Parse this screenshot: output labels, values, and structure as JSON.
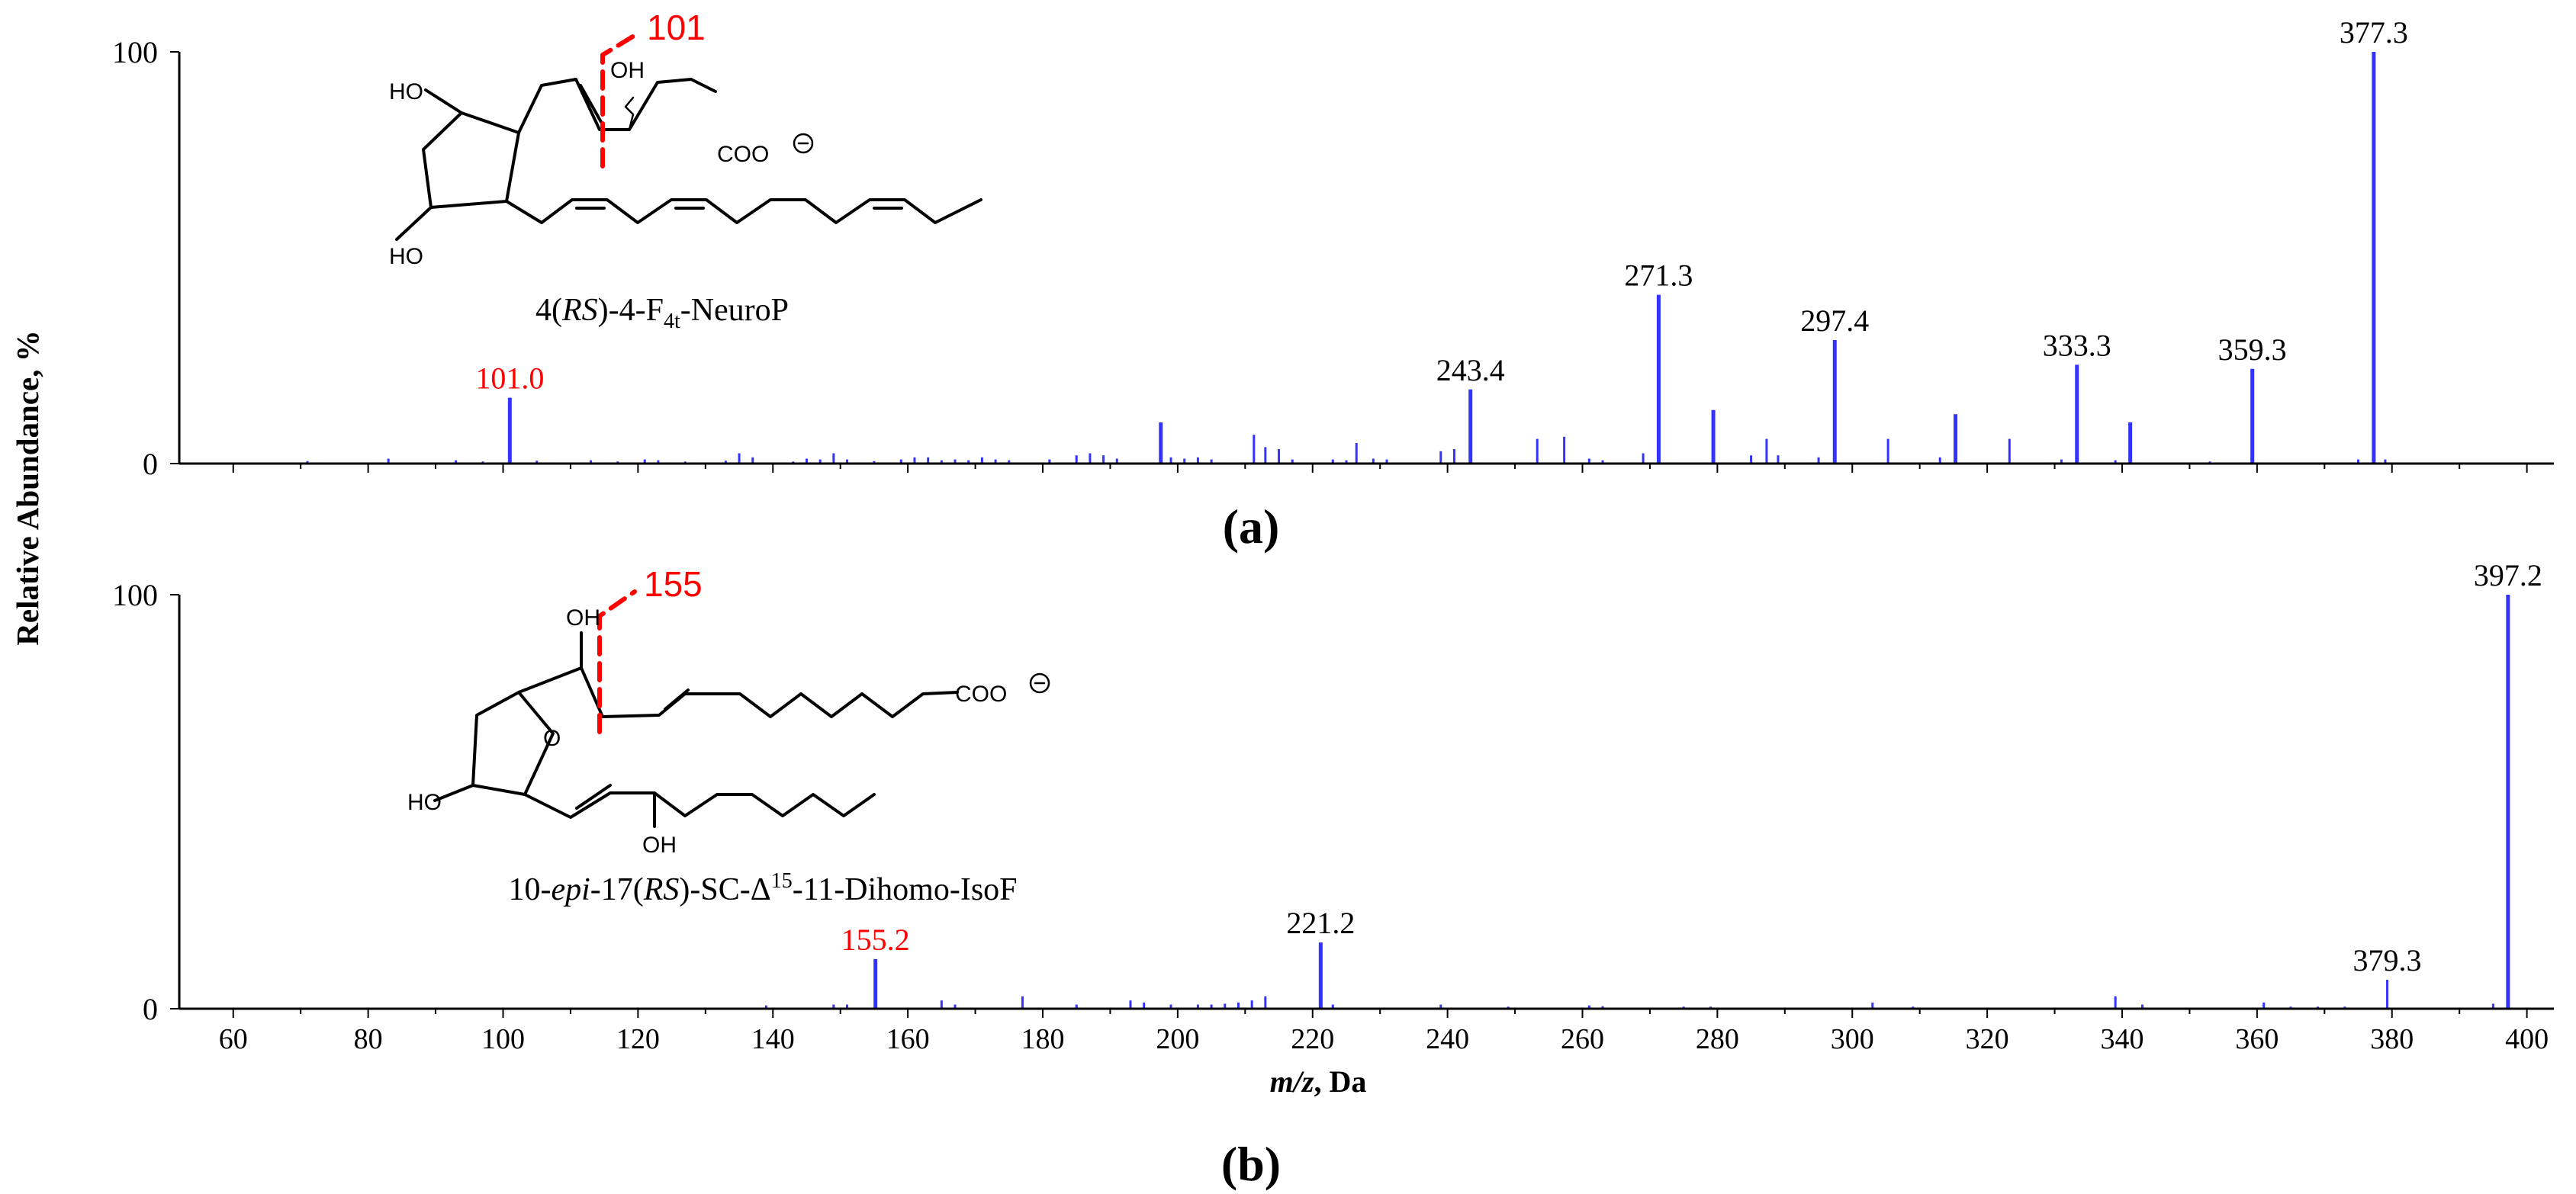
{
  "figure": {
    "y_axis_label": "Relative Abundance, %",
    "x_axis_label_italic": "m/z",
    "x_axis_label_suffix": ", Da",
    "panel_labels": [
      "(a)",
      "(b)"
    ]
  },
  "colors": {
    "spectrum": "#3333ff",
    "fragment": "#ff0000",
    "axis": "#000000"
  },
  "structures": [
    {
      "compound_parts": [
        "4(",
        "RS",
        ")-4-F",
        "4t",
        "-NeuroP"
      ],
      "fragment_label": "101",
      "atom_labels": [
        "HO",
        "HO",
        "OH",
        "COO"
      ]
    },
    {
      "compound_parts": [
        "10-",
        "epi",
        "-17(",
        "RS",
        ")-SC-Δ",
        "15",
        "-11-Dihomo-IsoF"
      ],
      "fragment_label": "155",
      "atom_labels": [
        "OH",
        "O",
        "HO",
        "OH",
        "COO"
      ]
    }
  ],
  "chart_data": [
    {
      "type": "bar",
      "panel": "(a)",
      "xlim": [
        52,
        404
      ],
      "ylim": [
        0,
        100
      ],
      "yticks": [
        0,
        100
      ],
      "xlabel": "",
      "ylabel": "Relative Abundance, %",
      "labeled_peaks": [
        {
          "x": 101.0,
          "label": "101.0",
          "color": "#ff0000"
        },
        {
          "x": 243.4,
          "label": "243.4"
        },
        {
          "x": 271.3,
          "label": "271.3"
        },
        {
          "x": 297.4,
          "label": "297.4"
        },
        {
          "x": 333.3,
          "label": "333.3"
        },
        {
          "x": 359.3,
          "label": "359.3"
        },
        {
          "x": 377.3,
          "label": "377.3"
        }
      ],
      "peaks": [
        [
          101.0,
          16
        ],
        [
          197.5,
          10
        ],
        [
          211.3,
          7
        ],
        [
          226.5,
          5
        ],
        [
          243.4,
          18
        ],
        [
          253.3,
          6
        ],
        [
          257.3,
          6.5
        ],
        [
          271.3,
          41
        ],
        [
          279.4,
          13
        ],
        [
          287.3,
          6
        ],
        [
          297.4,
          30
        ],
        [
          305.3,
          6
        ],
        [
          315.3,
          12
        ],
        [
          323.3,
          6
        ],
        [
          333.3,
          24
        ],
        [
          341.2,
          10
        ],
        [
          359.3,
          23
        ],
        [
          377.3,
          100
        ],
        [
          71,
          0.6
        ],
        [
          83,
          1.2
        ],
        [
          93,
          0.8
        ],
        [
          97,
          0.5
        ],
        [
          105,
          0.7
        ],
        [
          113,
          0.8
        ],
        [
          117,
          0.5
        ],
        [
          121,
          1.0
        ],
        [
          123,
          0.8
        ],
        [
          127,
          0.5
        ],
        [
          133,
          0.7
        ],
        [
          135,
          2.5
        ],
        [
          137,
          1.5
        ],
        [
          143,
          0.5
        ],
        [
          145,
          1.2
        ],
        [
          147,
          1.0
        ],
        [
          149,
          2.5
        ],
        [
          151,
          1.0
        ],
        [
          155,
          0.6
        ],
        [
          159,
          1.0
        ],
        [
          161,
          1.5
        ],
        [
          163,
          1.5
        ],
        [
          165,
          0.8
        ],
        [
          167,
          1.0
        ],
        [
          169,
          0.8
        ],
        [
          171,
          1.5
        ],
        [
          173,
          1.0
        ],
        [
          175,
          0.8
        ],
        [
          181,
          1.0
        ],
        [
          185,
          2.0
        ],
        [
          187,
          2.5
        ],
        [
          189,
          2.0
        ],
        [
          191,
          1.2
        ],
        [
          199,
          1.5
        ],
        [
          201,
          1.2
        ],
        [
          203,
          1.5
        ],
        [
          205,
          1.0
        ],
        [
          213,
          4.0
        ],
        [
          215,
          3.5
        ],
        [
          217,
          1.0
        ],
        [
          223,
          1.0
        ],
        [
          225,
          0.8
        ],
        [
          229,
          1.2
        ],
        [
          231,
          1.0
        ],
        [
          239,
          3.0
        ],
        [
          241,
          3.5
        ],
        [
          261,
          1.2
        ],
        [
          263,
          0.8
        ],
        [
          269,
          2.5
        ],
        [
          285,
          2.0
        ],
        [
          289,
          2.0
        ],
        [
          295,
          1.5
        ],
        [
          313,
          1.5
        ],
        [
          331,
          1.0
        ],
        [
          339,
          0.8
        ],
        [
          353,
          0.5
        ],
        [
          375,
          1.0
        ],
        [
          379,
          1.0
        ]
      ]
    },
    {
      "type": "bar",
      "panel": "(b)",
      "xlim": [
        52,
        404
      ],
      "ylim": [
        0,
        100
      ],
      "yticks": [
        0,
        100
      ],
      "xticks": [
        60,
        80,
        100,
        120,
        140,
        160,
        180,
        200,
        220,
        240,
        260,
        280,
        300,
        320,
        340,
        360,
        380,
        400
      ],
      "xlabel": "m/z, Da",
      "ylabel": "Relative Abundance, %",
      "labeled_peaks": [
        {
          "x": 155.2,
          "label": "155.2",
          "color": "#ff0000"
        },
        {
          "x": 221.2,
          "label": "221.2"
        },
        {
          "x": 379.3,
          "label": "379.3"
        },
        {
          "x": 397.2,
          "label": "397.2"
        }
      ],
      "peaks": [
        [
          155.2,
          12
        ],
        [
          221.2,
          16
        ],
        [
          379.3,
          7
        ],
        [
          397.2,
          100
        ],
        [
          139,
          0.8
        ],
        [
          149,
          1.0
        ],
        [
          151,
          1.0
        ],
        [
          165,
          2.0
        ],
        [
          167,
          1.0
        ],
        [
          177,
          3.0
        ],
        [
          185,
          1.0
        ],
        [
          193,
          2.0
        ],
        [
          195,
          1.5
        ],
        [
          199,
          1.0
        ],
        [
          203,
          1.0
        ],
        [
          205,
          1.0
        ],
        [
          207,
          1.2
        ],
        [
          209,
          1.5
        ],
        [
          211,
          2.0
        ],
        [
          213,
          3.0
        ],
        [
          223,
          1.0
        ],
        [
          239,
          1.0
        ],
        [
          249,
          0.5
        ],
        [
          261,
          0.8
        ],
        [
          263,
          0.6
        ],
        [
          275,
          0.5
        ],
        [
          279,
          0.5
        ],
        [
          303,
          1.5
        ],
        [
          309,
          0.5
        ],
        [
          339,
          3.0
        ],
        [
          343,
          1.0
        ],
        [
          361,
          1.5
        ],
        [
          365,
          0.5
        ],
        [
          369,
          0.5
        ],
        [
          373,
          0.5
        ],
        [
          395,
          1.2
        ]
      ]
    }
  ]
}
